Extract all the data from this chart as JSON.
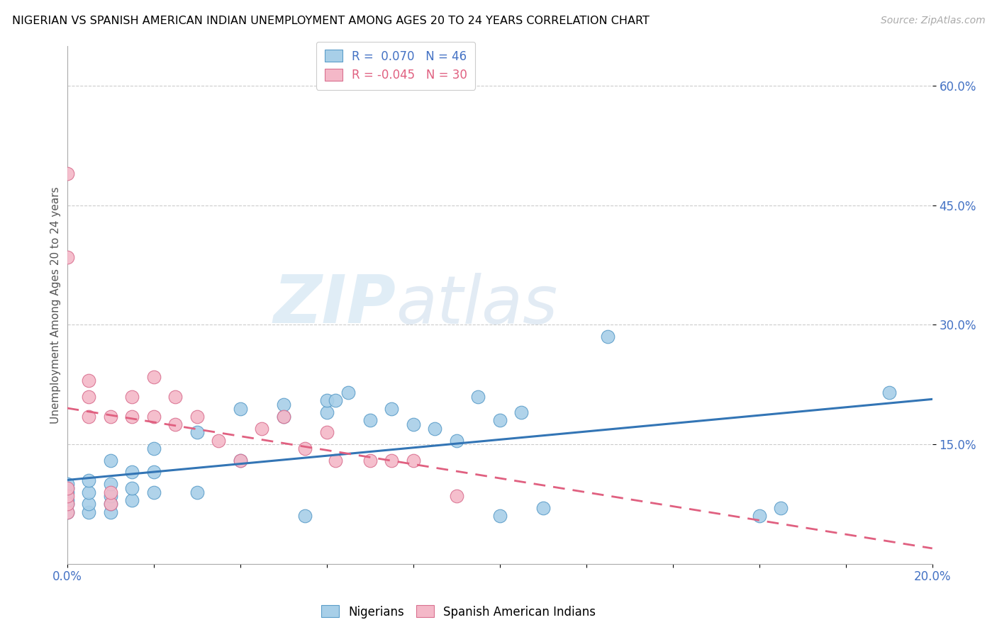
{
  "title": "NIGERIAN VS SPANISH AMERICAN INDIAN UNEMPLOYMENT AMONG AGES 20 TO 24 YEARS CORRELATION CHART",
  "source": "Source: ZipAtlas.com",
  "ylabel": "Unemployment Among Ages 20 to 24 years",
  "xlim": [
    0.0,
    0.2
  ],
  "ylim": [
    0.0,
    0.65
  ],
  "xticks": [
    0.0,
    0.02,
    0.04,
    0.06,
    0.08,
    0.1,
    0.12,
    0.14,
    0.16,
    0.18,
    0.2
  ],
  "yticks": [
    0.15,
    0.3,
    0.45,
    0.6
  ],
  "ytick_labels": [
    "15.0%",
    "30.0%",
    "45.0%",
    "60.0%"
  ],
  "xtick_labels": [
    "0.0%",
    "",
    "",
    "",
    "",
    "",
    "",
    "",
    "",
    "",
    "20.0%"
  ],
  "legend_r1": "R =  0.070",
  "legend_n1": "N = 46",
  "legend_r2": "R = -0.045",
  "legend_n2": "N = 30",
  "blue_color": "#a8cfe8",
  "blue_edge_color": "#5b9dc9",
  "pink_color": "#f4b8c8",
  "pink_edge_color": "#d97090",
  "blue_line_color": "#3375b5",
  "pink_line_color": "#e06080",
  "watermark_zip": "ZIP",
  "watermark_atlas": "atlas",
  "blue_x": [
    0.0,
    0.0,
    0.0,
    0.0,
    0.0,
    0.0,
    0.005,
    0.005,
    0.005,
    0.005,
    0.01,
    0.01,
    0.01,
    0.01,
    0.01,
    0.015,
    0.015,
    0.015,
    0.02,
    0.02,
    0.02,
    0.03,
    0.03,
    0.04,
    0.04,
    0.05,
    0.05,
    0.055,
    0.06,
    0.06,
    0.062,
    0.065,
    0.07,
    0.075,
    0.08,
    0.085,
    0.09,
    0.095,
    0.1,
    0.1,
    0.105,
    0.11,
    0.125,
    0.16,
    0.165,
    0.19
  ],
  "blue_y": [
    0.065,
    0.075,
    0.08,
    0.09,
    0.095,
    0.1,
    0.065,
    0.075,
    0.09,
    0.105,
    0.065,
    0.075,
    0.085,
    0.1,
    0.13,
    0.08,
    0.095,
    0.115,
    0.09,
    0.115,
    0.145,
    0.09,
    0.165,
    0.13,
    0.195,
    0.185,
    0.2,
    0.06,
    0.19,
    0.205,
    0.205,
    0.215,
    0.18,
    0.195,
    0.175,
    0.17,
    0.155,
    0.21,
    0.06,
    0.18,
    0.19,
    0.07,
    0.285,
    0.06,
    0.07,
    0.215
  ],
  "pink_x": [
    0.0,
    0.0,
    0.0,
    0.0,
    0.0,
    0.0,
    0.005,
    0.005,
    0.005,
    0.01,
    0.01,
    0.01,
    0.015,
    0.015,
    0.02,
    0.02,
    0.025,
    0.025,
    0.03,
    0.035,
    0.04,
    0.045,
    0.05,
    0.055,
    0.06,
    0.062,
    0.07,
    0.075,
    0.08,
    0.09
  ],
  "pink_y": [
    0.065,
    0.075,
    0.085,
    0.095,
    0.49,
    0.385,
    0.185,
    0.21,
    0.23,
    0.075,
    0.09,
    0.185,
    0.185,
    0.21,
    0.185,
    0.235,
    0.175,
    0.21,
    0.185,
    0.155,
    0.13,
    0.17,
    0.185,
    0.145,
    0.165,
    0.13,
    0.13,
    0.13,
    0.13,
    0.085
  ]
}
